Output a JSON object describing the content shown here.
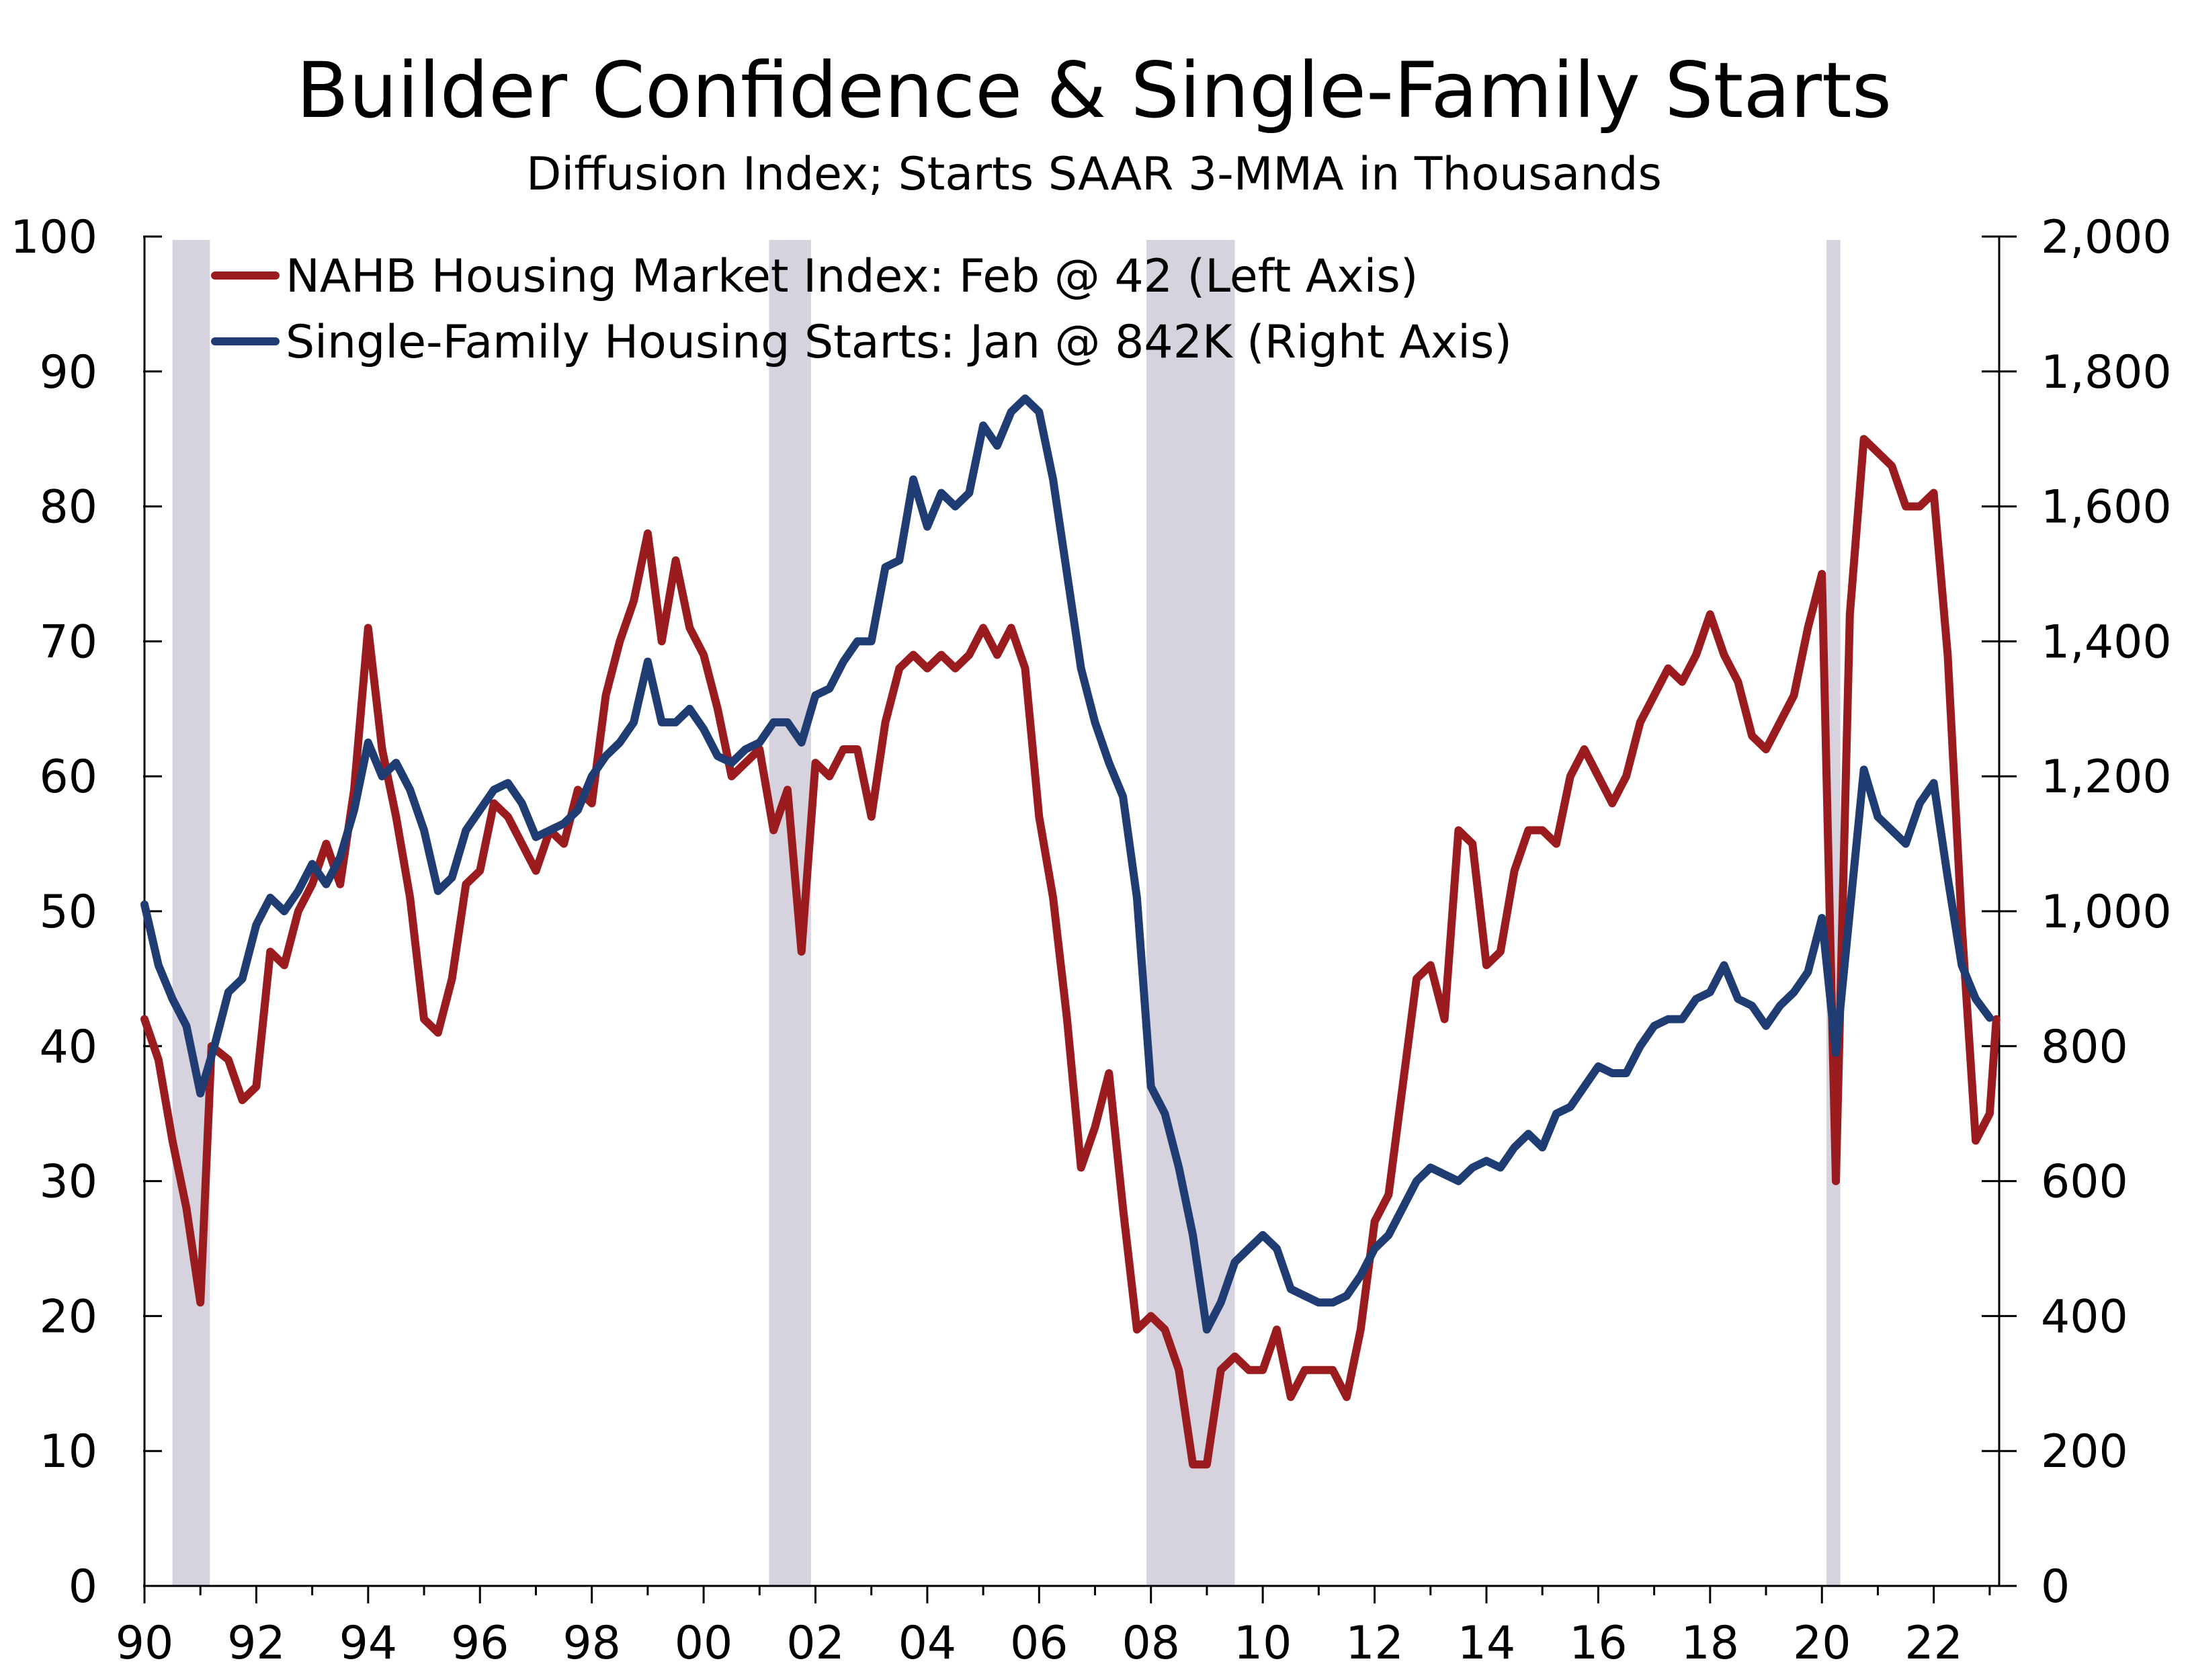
{
  "chart_data": {
    "type": "line",
    "title": "Builder Confidence & Single-Family Starts",
    "subtitle": "Diffusion Index; Starts SAAR 3-MMA in Thousands",
    "x_range": [
      1990.0,
      2023.17
    ],
    "x_tick_values": [
      1990,
      1992,
      1994,
      1996,
      1998,
      2000,
      2002,
      2004,
      2006,
      2008,
      2010,
      2012,
      2014,
      2016,
      2018,
      2020,
      2022
    ],
    "x_tick_labels": [
      "90",
      "92",
      "94",
      "96",
      "98",
      "00",
      "02",
      "04",
      "06",
      "08",
      "10",
      "12",
      "14",
      "16",
      "18",
      "20",
      "22"
    ],
    "left_axis": {
      "ylim": [
        0,
        100
      ],
      "ticks": [
        0,
        10,
        20,
        30,
        40,
        50,
        60,
        70,
        80,
        90,
        100
      ],
      "tick_labels": [
        "0",
        "10",
        "20",
        "30",
        "40",
        "50",
        "60",
        "70",
        "80",
        "90",
        "100"
      ]
    },
    "right_axis": {
      "ylim": [
        0,
        2000
      ],
      "ticks": [
        0,
        200,
        400,
        600,
        800,
        1000,
        1200,
        1400,
        1600,
        1800,
        2000
      ],
      "tick_labels": [
        "0",
        "200",
        "400",
        "600",
        "800",
        "1,000",
        "1,200",
        "1,400",
        "1,600",
        "1,800",
        "2,000"
      ]
    },
    "recessions": [
      [
        1990.5,
        1991.17
      ],
      [
        2001.17,
        2001.92
      ],
      [
        2007.92,
        2009.5
      ],
      [
        2020.08,
        2020.33
      ]
    ],
    "series": [
      {
        "name": "NAHB Housing Market Index: Feb @ 42 (Left Axis)",
        "axis": "left",
        "color": "#9b1c1f",
        "points": [
          [
            1990.0,
            42
          ],
          [
            1990.25,
            39
          ],
          [
            1990.5,
            33
          ],
          [
            1990.75,
            28
          ],
          [
            1991.0,
            21
          ],
          [
            1991.2,
            40
          ],
          [
            1991.5,
            39
          ],
          [
            1991.75,
            36
          ],
          [
            1992.0,
            37
          ],
          [
            1992.25,
            47
          ],
          [
            1992.5,
            46
          ],
          [
            1992.75,
            50
          ],
          [
            1993.0,
            52
          ],
          [
            1993.25,
            55
          ],
          [
            1993.5,
            52
          ],
          [
            1993.75,
            59
          ],
          [
            1994.0,
            71
          ],
          [
            1994.25,
            62
          ],
          [
            1994.5,
            57
          ],
          [
            1994.75,
            51
          ],
          [
            1995.0,
            42
          ],
          [
            1995.25,
            41
          ],
          [
            1995.5,
            45
          ],
          [
            1995.75,
            52
          ],
          [
            1996.0,
            53
          ],
          [
            1996.25,
            58
          ],
          [
            1996.5,
            57
          ],
          [
            1996.75,
            55
          ],
          [
            1997.0,
            53
          ],
          [
            1997.25,
            56
          ],
          [
            1997.5,
            55
          ],
          [
            1997.75,
            59
          ],
          [
            1998.0,
            58
          ],
          [
            1998.25,
            66
          ],
          [
            1998.5,
            70
          ],
          [
            1998.75,
            73
          ],
          [
            1999.0,
            78
          ],
          [
            1999.25,
            70
          ],
          [
            1999.5,
            76
          ],
          [
            1999.75,
            71
          ],
          [
            2000.0,
            69
          ],
          [
            2000.25,
            65
          ],
          [
            2000.5,
            60
          ],
          [
            2000.75,
            61
          ],
          [
            2001.0,
            62
          ],
          [
            2001.25,
            56
          ],
          [
            2001.5,
            59
          ],
          [
            2001.75,
            47
          ],
          [
            2002.0,
            61
          ],
          [
            2002.25,
            60
          ],
          [
            2002.5,
            62
          ],
          [
            2002.75,
            62
          ],
          [
            2003.0,
            57
          ],
          [
            2003.25,
            64
          ],
          [
            2003.5,
            68
          ],
          [
            2003.75,
            69
          ],
          [
            2004.0,
            68
          ],
          [
            2004.25,
            69
          ],
          [
            2004.5,
            68
          ],
          [
            2004.75,
            69
          ],
          [
            2005.0,
            71
          ],
          [
            2005.25,
            69
          ],
          [
            2005.5,
            71
          ],
          [
            2005.75,
            68
          ],
          [
            2006.0,
            57
          ],
          [
            2006.25,
            51
          ],
          [
            2006.5,
            42
          ],
          [
            2006.75,
            31
          ],
          [
            2007.0,
            34
          ],
          [
            2007.25,
            38
          ],
          [
            2007.5,
            28
          ],
          [
            2007.75,
            19
          ],
          [
            2008.0,
            20
          ],
          [
            2008.25,
            19
          ],
          [
            2008.5,
            16
          ],
          [
            2008.75,
            9
          ],
          [
            2009.0,
            9
          ],
          [
            2009.25,
            16
          ],
          [
            2009.5,
            17
          ],
          [
            2009.75,
            16
          ],
          [
            2010.0,
            16
          ],
          [
            2010.25,
            19
          ],
          [
            2010.5,
            14
          ],
          [
            2010.75,
            16
          ],
          [
            2011.0,
            16
          ],
          [
            2011.25,
            16
          ],
          [
            2011.5,
            14
          ],
          [
            2011.75,
            19
          ],
          [
            2012.0,
            27
          ],
          [
            2012.25,
            29
          ],
          [
            2012.5,
            37
          ],
          [
            2012.75,
            45
          ],
          [
            2013.0,
            46
          ],
          [
            2013.25,
            42
          ],
          [
            2013.5,
            56
          ],
          [
            2013.75,
            55
          ],
          [
            2014.0,
            46
          ],
          [
            2014.25,
            47
          ],
          [
            2014.5,
            53
          ],
          [
            2014.75,
            56
          ],
          [
            2015.0,
            56
          ],
          [
            2015.25,
            55
          ],
          [
            2015.5,
            60
          ],
          [
            2015.75,
            62
          ],
          [
            2016.0,
            60
          ],
          [
            2016.25,
            58
          ],
          [
            2016.5,
            60
          ],
          [
            2016.75,
            64
          ],
          [
            2017.0,
            66
          ],
          [
            2017.25,
            68
          ],
          [
            2017.5,
            67
          ],
          [
            2017.75,
            69
          ],
          [
            2018.0,
            72
          ],
          [
            2018.25,
            69
          ],
          [
            2018.5,
            67
          ],
          [
            2018.75,
            63
          ],
          [
            2019.0,
            62
          ],
          [
            2019.25,
            64
          ],
          [
            2019.5,
            66
          ],
          [
            2019.75,
            71
          ],
          [
            2020.0,
            75
          ],
          [
            2020.25,
            30
          ],
          [
            2020.5,
            72
          ],
          [
            2020.75,
            85
          ],
          [
            2021.0,
            84
          ],
          [
            2021.25,
            83
          ],
          [
            2021.5,
            80
          ],
          [
            2021.75,
            80
          ],
          [
            2022.0,
            81
          ],
          [
            2022.25,
            69
          ],
          [
            2022.5,
            49
          ],
          [
            2022.75,
            33
          ],
          [
            2023.0,
            35
          ],
          [
            2023.12,
            42
          ]
        ]
      },
      {
        "name": "Single-Family Housing Starts: Jan @ 842K (Right Axis)",
        "axis": "right",
        "color": "#1f3d73",
        "points": [
          [
            1990.0,
            1010
          ],
          [
            1990.25,
            920
          ],
          [
            1990.5,
            870
          ],
          [
            1990.75,
            830
          ],
          [
            1991.0,
            730
          ],
          [
            1991.25,
            800
          ],
          [
            1991.5,
            880
          ],
          [
            1991.75,
            900
          ],
          [
            1992.0,
            980
          ],
          [
            1992.25,
            1020
          ],
          [
            1992.5,
            1000
          ],
          [
            1992.75,
            1030
          ],
          [
            1993.0,
            1070
          ],
          [
            1993.25,
            1040
          ],
          [
            1993.5,
            1080
          ],
          [
            1993.75,
            1150
          ],
          [
            1994.0,
            1250
          ],
          [
            1994.25,
            1200
          ],
          [
            1994.5,
            1220
          ],
          [
            1994.75,
            1180
          ],
          [
            1995.0,
            1120
          ],
          [
            1995.25,
            1030
          ],
          [
            1995.5,
            1050
          ],
          [
            1995.75,
            1120
          ],
          [
            1996.0,
            1150
          ],
          [
            1996.25,
            1180
          ],
          [
            1996.5,
            1190
          ],
          [
            1996.75,
            1160
          ],
          [
            1997.0,
            1110
          ],
          [
            1997.25,
            1120
          ],
          [
            1997.5,
            1130
          ],
          [
            1997.75,
            1150
          ],
          [
            1998.0,
            1200
          ],
          [
            1998.25,
            1230
          ],
          [
            1998.5,
            1250
          ],
          [
            1998.75,
            1280
          ],
          [
            1999.0,
            1370
          ],
          [
            1999.25,
            1280
          ],
          [
            1999.5,
            1280
          ],
          [
            1999.75,
            1300
          ],
          [
            2000.0,
            1270
          ],
          [
            2000.25,
            1230
          ],
          [
            2000.5,
            1220
          ],
          [
            2000.75,
            1240
          ],
          [
            2001.0,
            1250
          ],
          [
            2001.25,
            1280
          ],
          [
            2001.5,
            1280
          ],
          [
            2001.75,
            1250
          ],
          [
            2002.0,
            1320
          ],
          [
            2002.25,
            1330
          ],
          [
            2002.5,
            1370
          ],
          [
            2002.75,
            1400
          ],
          [
            2003.0,
            1400
          ],
          [
            2003.25,
            1510
          ],
          [
            2003.5,
            1520
          ],
          [
            2003.75,
            1640
          ],
          [
            2004.0,
            1570
          ],
          [
            2004.25,
            1620
          ],
          [
            2004.5,
            1600
          ],
          [
            2004.75,
            1620
          ],
          [
            2005.0,
            1720
          ],
          [
            2005.25,
            1690
          ],
          [
            2005.5,
            1740
          ],
          [
            2005.75,
            1760
          ],
          [
            2006.0,
            1740
          ],
          [
            2006.25,
            1640
          ],
          [
            2006.5,
            1500
          ],
          [
            2006.75,
            1360
          ],
          [
            2007.0,
            1280
          ],
          [
            2007.25,
            1220
          ],
          [
            2007.5,
            1170
          ],
          [
            2007.75,
            1020
          ],
          [
            2008.0,
            740
          ],
          [
            2008.25,
            700
          ],
          [
            2008.5,
            620
          ],
          [
            2008.75,
            520
          ],
          [
            2009.0,
            380
          ],
          [
            2009.25,
            420
          ],
          [
            2009.5,
            480
          ],
          [
            2009.75,
            500
          ],
          [
            2010.0,
            520
          ],
          [
            2010.25,
            500
          ],
          [
            2010.5,
            440
          ],
          [
            2010.75,
            430
          ],
          [
            2011.0,
            420
          ],
          [
            2011.25,
            420
          ],
          [
            2011.5,
            430
          ],
          [
            2011.75,
            460
          ],
          [
            2012.0,
            500
          ],
          [
            2012.25,
            520
          ],
          [
            2012.5,
            560
          ],
          [
            2012.75,
            600
          ],
          [
            2013.0,
            620
          ],
          [
            2013.25,
            610
          ],
          [
            2013.5,
            600
          ],
          [
            2013.75,
            620
          ],
          [
            2014.0,
            630
          ],
          [
            2014.25,
            620
          ],
          [
            2014.5,
            650
          ],
          [
            2014.75,
            670
          ],
          [
            2015.0,
            650
          ],
          [
            2015.25,
            700
          ],
          [
            2015.5,
            710
          ],
          [
            2015.75,
            740
          ],
          [
            2016.0,
            770
          ],
          [
            2016.25,
            760
          ],
          [
            2016.5,
            760
          ],
          [
            2016.75,
            800
          ],
          [
            2017.0,
            830
          ],
          [
            2017.25,
            840
          ],
          [
            2017.5,
            840
          ],
          [
            2017.75,
            870
          ],
          [
            2018.0,
            880
          ],
          [
            2018.25,
            920
          ],
          [
            2018.5,
            870
          ],
          [
            2018.75,
            860
          ],
          [
            2019.0,
            830
          ],
          [
            2019.25,
            860
          ],
          [
            2019.5,
            880
          ],
          [
            2019.75,
            910
          ],
          [
            2020.0,
            990
          ],
          [
            2020.25,
            790
          ],
          [
            2020.5,
            1000
          ],
          [
            2020.75,
            1210
          ],
          [
            2021.0,
            1140
          ],
          [
            2021.25,
            1120
          ],
          [
            2021.5,
            1100
          ],
          [
            2021.75,
            1160
          ],
          [
            2022.0,
            1190
          ],
          [
            2022.25,
            1050
          ],
          [
            2022.5,
            920
          ],
          [
            2022.75,
            870
          ],
          [
            2023.0,
            842
          ]
        ]
      }
    ]
  }
}
